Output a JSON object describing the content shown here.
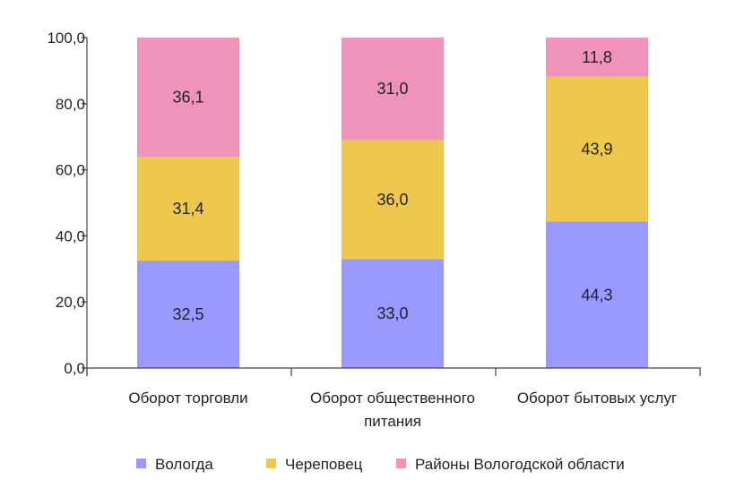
{
  "chart_data": {
    "type": "bar",
    "stacked": true,
    "categories": [
      [
        "Оборот торговли"
      ],
      [
        "Оборот общественного",
        "питания"
      ],
      [
        "Оборот бытовых услуг"
      ]
    ],
    "series": [
      {
        "name": "Вологда",
        "color": "#9999ff",
        "values": [
          32.5,
          33.0,
          44.3
        ],
        "labels": [
          "32,5",
          "33,0",
          "44,3"
        ]
      },
      {
        "name": "Череповец",
        "color": "#eec84e",
        "values": [
          31.4,
          36.0,
          43.9
        ],
        "labels": [
          "31,4",
          "36,0",
          "43,9"
        ]
      },
      {
        "name": "Районы Вологодской области",
        "color": "#ef93bb",
        "values": [
          36.1,
          31.0,
          11.8
        ],
        "labels": [
          "36,1",
          "31,0",
          "11,8"
        ]
      }
    ],
    "ylim": [
      0,
      100
    ],
    "yticks": [
      0,
      20,
      40,
      60,
      80,
      100
    ],
    "ytick_labels": [
      "0,0",
      "20,0",
      "40,0",
      "60,0",
      "80,0",
      "100,0"
    ],
    "title": "",
    "xlabel": "",
    "ylabel": "",
    "legend_position": "bottom",
    "grid": false
  }
}
